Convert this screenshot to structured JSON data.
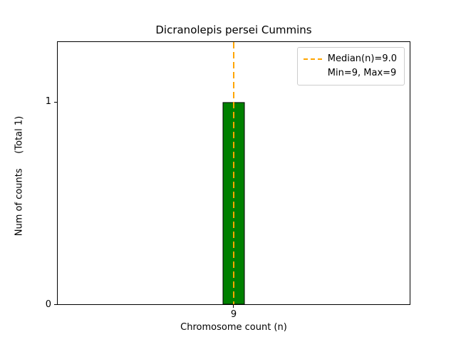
{
  "chart_data": {
    "type": "bar",
    "title": "Dicranolepis persei Cummins",
    "xlabel": "Chromosome count (n)",
    "ylabel": "Num of counts     (Total 1)",
    "categories": [
      "9"
    ],
    "values": [
      1
    ],
    "yticks": [
      0,
      1
    ],
    "ylim": [
      0,
      1.3
    ],
    "grid": false,
    "bar_color": "#008000",
    "bar_edge_color": "#000000",
    "median_line": {
      "value": 9.0,
      "color": "#ffa500",
      "style": "dashed"
    },
    "legend": {
      "position": "upper right",
      "entries": [
        "Median(n)=9.0",
        "Min=9, Max=9"
      ]
    }
  }
}
